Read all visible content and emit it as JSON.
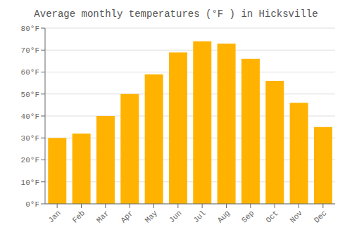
{
  "chart_data": {
    "type": "bar",
    "title": "Average monthly temperatures (°F ) in Hicksville",
    "categories": [
      "Jan",
      "Feb",
      "Mar",
      "Apr",
      "May",
      "Jun",
      "Jul",
      "Aug",
      "Sep",
      "Oct",
      "Nov",
      "Dec"
    ],
    "values": [
      30,
      32,
      40,
      50,
      59,
      69,
      74,
      73,
      66,
      56,
      46,
      35
    ],
    "color": "#FFB300",
    "ylim": [
      0,
      80
    ],
    "yticks": [
      {
        "value": 0,
        "label": "0°F"
      },
      {
        "value": 10,
        "label": "10°F"
      },
      {
        "value": 20,
        "label": "20°F"
      },
      {
        "value": 30,
        "label": "30°F"
      },
      {
        "value": 40,
        "label": "40°F"
      },
      {
        "value": 50,
        "label": "50°F"
      },
      {
        "value": 60,
        "label": "60°F"
      },
      {
        "value": 70,
        "label": "70°F"
      },
      {
        "value": 80,
        "label": "80°F"
      }
    ],
    "grid": true
  }
}
